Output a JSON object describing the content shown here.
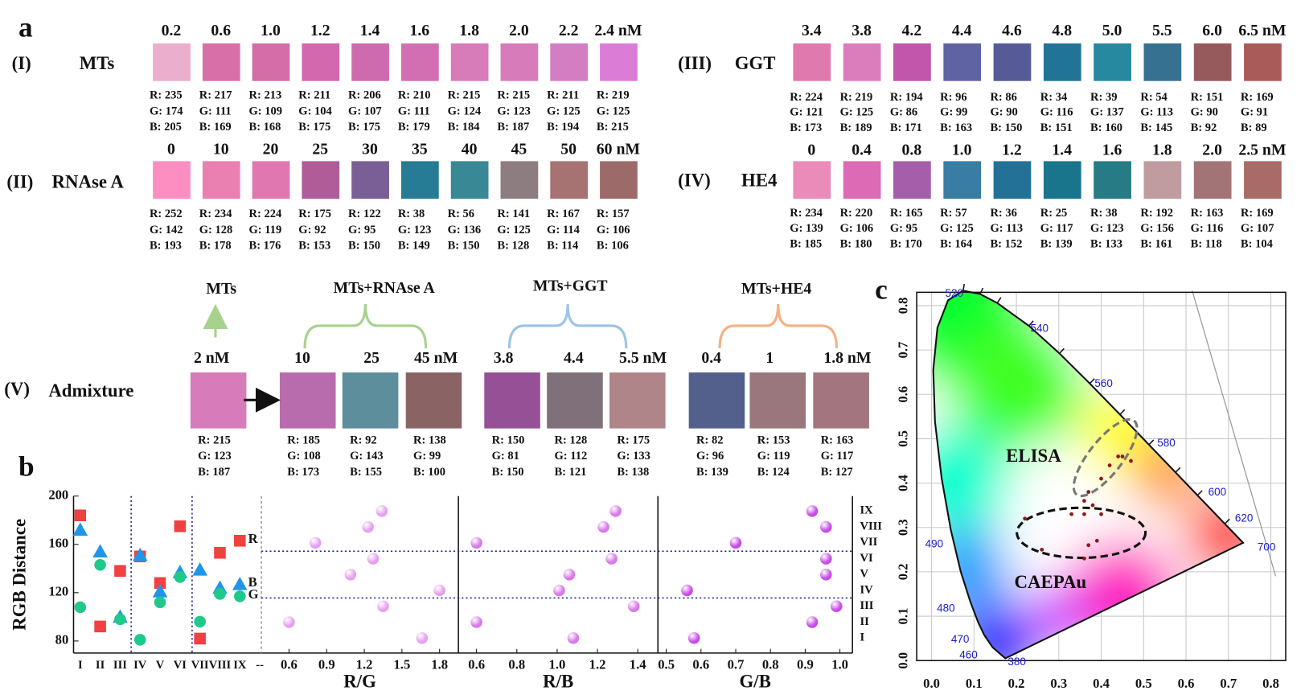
{
  "panel_a": {
    "label": "a",
    "groups": [
      {
        "roman": "(I)",
        "name": "MTs",
        "swatches": [
          {
            "conc": "0.2",
            "color": "rgb(235,174,205)",
            "rgb": [
              "R: 235",
              "G: 174",
              "B: 205"
            ]
          },
          {
            "conc": "0.6",
            "color": "rgb(217,111,169)",
            "rgb": [
              "R: 217",
              "G: 111",
              "B: 169"
            ]
          },
          {
            "conc": "1.0",
            "color": "rgb(213,109,168)",
            "rgb": [
              "R: 213",
              "G: 109",
              "B: 168"
            ]
          },
          {
            "conc": "1.2",
            "color": "rgb(211,104,175)",
            "rgb": [
              "R: 211",
              "G: 104",
              "B: 175"
            ]
          },
          {
            "conc": "1.4",
            "color": "rgb(206,107,175)",
            "rgb": [
              "R: 206",
              "G: 107",
              "B: 175"
            ]
          },
          {
            "conc": "1.6",
            "color": "rgb(210,111,179)",
            "rgb": [
              "R: 210",
              "G: 111",
              "B: 179"
            ]
          },
          {
            "conc": "1.8",
            "color": "rgb(215,124,184)",
            "rgb": [
              "R: 215",
              "G: 124",
              "B: 184"
            ]
          },
          {
            "conc": "2.0",
            "color": "rgb(215,123,187)",
            "rgb": [
              "R: 215",
              "G: 123",
              "B: 187"
            ]
          },
          {
            "conc": "2.2",
            "color": "rgb(211,125,194)",
            "rgb": [
              "R: 211",
              "G: 125",
              "B: 194"
            ]
          },
          {
            "conc": "2.4 nM",
            "color": "rgb(219,125,215)",
            "rgb": [
              "R: 219",
              "G: 125",
              "B: 215"
            ]
          }
        ]
      },
      {
        "roman": "(II)",
        "name": "RNAse A",
        "swatches": [
          {
            "conc": "0",
            "color": "rgb(252,142,193)",
            "rgb": [
              "R: 252",
              "G: 142",
              "B: 193"
            ]
          },
          {
            "conc": "10",
            "color": "rgb(234,128,178)",
            "rgb": [
              "R: 234",
              "G: 128",
              "B: 178"
            ]
          },
          {
            "conc": "20",
            "color": "rgb(224,119,176)",
            "rgb": [
              "R: 224",
              "G: 119",
              "B: 176"
            ]
          },
          {
            "conc": "25",
            "color": "rgb(175,92,153)",
            "rgb": [
              "R: 175",
              "G: 92",
              "B: 153"
            ]
          },
          {
            "conc": "30",
            "color": "rgb(122,95,150)",
            "rgb": [
              "R: 122",
              "G: 95",
              "B: 150"
            ]
          },
          {
            "conc": "35",
            "color": "rgb(38,123,149)",
            "rgb": [
              "R: 38",
              "G: 123",
              "B: 149"
            ]
          },
          {
            "conc": "40",
            "color": "rgb(56,136,150)",
            "rgb": [
              "R: 56",
              "G: 136",
              "B: 150"
            ]
          },
          {
            "conc": "45",
            "color": "rgb(141,125,128)",
            "rgb": [
              "R: 141",
              "G: 125",
              "B: 128"
            ]
          },
          {
            "conc": "50",
            "color": "rgb(167,114,114)",
            "rgb": [
              "R: 167",
              "G: 114",
              "B: 114"
            ]
          },
          {
            "conc": "60 nM",
            "color": "rgb(157,106,106)",
            "rgb": [
              "R: 157",
              "G: 106",
              "B: 106"
            ]
          }
        ]
      },
      {
        "roman": "(III)",
        "name": "GGT",
        "swatches": [
          {
            "conc": "3.4",
            "color": "rgb(224,121,173)",
            "rgb": [
              "R: 224",
              "G: 121",
              "B: 173"
            ]
          },
          {
            "conc": "3.8",
            "color": "rgb(219,125,189)",
            "rgb": [
              "R: 219",
              "G: 125",
              "B: 189"
            ]
          },
          {
            "conc": "4.2",
            "color": "rgb(194,86,171)",
            "rgb": [
              "R: 194",
              "G: 86",
              "B: 171"
            ]
          },
          {
            "conc": "4.4",
            "color": "rgb(96,99,163)",
            "rgb": [
              "R: 96",
              "G: 99",
              "B: 163"
            ]
          },
          {
            "conc": "4.6",
            "color": "rgb(86,90,150)",
            "rgb": [
              "R: 86",
              "G: 90",
              "B: 150"
            ]
          },
          {
            "conc": "4.8",
            "color": "rgb(34,116,151)",
            "rgb": [
              "R: 34",
              "G: 116",
              "B: 151"
            ]
          },
          {
            "conc": "5.0",
            "color": "rgb(39,137,160)",
            "rgb": [
              "R: 39",
              "G: 137",
              "B: 160"
            ]
          },
          {
            "conc": "5.5",
            "color": "rgb(54,113,145)",
            "rgb": [
              "R: 54",
              "G: 113",
              "B: 145"
            ]
          },
          {
            "conc": "6.0",
            "color": "rgb(151,90,92)",
            "rgb": [
              "R: 151",
              "G: 90",
              "B: 92"
            ]
          },
          {
            "conc": "6.5 nM",
            "color": "rgb(169,91,89)",
            "rgb": [
              "R: 169",
              "G: 91",
              "B: 89"
            ]
          }
        ]
      },
      {
        "roman": "(IV)",
        "name": "HE4",
        "swatches": [
          {
            "conc": "0",
            "color": "rgb(234,139,185)",
            "rgb": [
              "R: 234",
              "G: 139",
              "B: 185"
            ]
          },
          {
            "conc": "0.4",
            "color": "rgb(220,106,180)",
            "rgb": [
              "R: 220",
              "G: 106",
              "B: 180"
            ]
          },
          {
            "conc": "0.8",
            "color": "rgb(165,95,170)",
            "rgb": [
              "R: 165",
              "G: 95",
              "B: 170"
            ]
          },
          {
            "conc": "1.0",
            "color": "rgb(57,125,164)",
            "rgb": [
              "R: 57",
              "G: 125",
              "B: 164"
            ]
          },
          {
            "conc": "1.2",
            "color": "rgb(36,113,152)",
            "rgb": [
              "R: 36",
              "G: 113",
              "B: 152"
            ]
          },
          {
            "conc": "1.4",
            "color": "rgb(25,117,139)",
            "rgb": [
              "R: 25",
              "G: 117",
              "B: 139"
            ]
          },
          {
            "conc": "1.6",
            "color": "rgb(38,123,133)",
            "rgb": [
              "R: 38",
              "G: 123",
              "B: 133"
            ]
          },
          {
            "conc": "1.8",
            "color": "rgb(192,156,161)",
            "rgb": [
              "R: 192",
              "G: 156",
              "B: 161"
            ]
          },
          {
            "conc": "2.0",
            "color": "rgb(163,116,118)",
            "rgb": [
              "R: 163",
              "G: 116",
              "B: 118"
            ]
          },
          {
            "conc": "2.5 nM",
            "color": "rgb(169,107,104)",
            "rgb": [
              "R: 169",
              "G: 107",
              "B: 104"
            ]
          }
        ]
      }
    ]
  },
  "panel_v": {
    "roman": "(V)",
    "name": "Admixture",
    "groups": [
      {
        "name": "MTs",
        "swatches": [
          {
            "conc": "2 nM",
            "color": "rgb(215,123,187)",
            "rgb": [
              "R: 215",
              "G: 123",
              "B: 187"
            ]
          }
        ]
      },
      {
        "name": "MTs+RNAse A",
        "swatches": [
          {
            "conc": "10",
            "color": "rgb(185,108,173)",
            "rgb": [
              "R: 185",
              "G: 108",
              "B: 173"
            ]
          },
          {
            "conc": "25",
            "color": "rgb(92,143,155)",
            "rgb": [
              "R: 92",
              "G: 143",
              "B: 155"
            ]
          },
          {
            "conc": "45 nM",
            "color": "rgb(138,99,100)",
            "rgb": [
              "R: 138",
              "G: 99",
              "B: 100"
            ]
          }
        ]
      },
      {
        "name": "MTs+GGT",
        "swatches": [
          {
            "conc": "3.8",
            "color": "rgb(150,81,150)",
            "rgb": [
              "R: 150",
              "G: 81",
              "B: 150"
            ]
          },
          {
            "conc": "4.4",
            "color": "rgb(128,112,121)",
            "rgb": [
              "R: 128",
              "G: 112",
              "B: 121"
            ]
          },
          {
            "conc": "5.5 nM",
            "color": "rgb(175,133,138)",
            "rgb": [
              "R: 175",
              "G: 133",
              "B: 138"
            ]
          }
        ]
      },
      {
        "name": "MTs+HE4",
        "swatches": [
          {
            "conc": "0.4",
            "color": "rgb(82,96,139)",
            "rgb": [
              "R: 82",
              "G: 96",
              "B: 139"
            ]
          },
          {
            "conc": "1",
            "color": "rgb(153,119,124)",
            "rgb": [
              "R: 153",
              "G: 119",
              "B: 124"
            ]
          },
          {
            "conc": "1.8 nM",
            "color": "rgb(163,117,127)",
            "rgb": [
              "R: 163",
              "G: 117",
              "B: 127"
            ]
          }
        ]
      }
    ]
  },
  "chart_data": [
    {
      "type": "scatter",
      "panel_label": "b",
      "y_label": "RGB Distance",
      "categories": [
        "I",
        "II",
        "III",
        "IV",
        "V",
        "VI",
        "VII",
        "VIII",
        "IX",
        "--"
      ],
      "ylim": [
        70,
        200
      ],
      "yticks": [
        80,
        120,
        160,
        200
      ],
      "series": [
        {
          "name": "R",
          "color": "#f04040",
          "marker": "square",
          "values": [
            184,
            92,
            138,
            150,
            128,
            175,
            82,
            153,
            163,
            null
          ]
        },
        {
          "name": "B",
          "color": "#2196e8",
          "marker": "triangle",
          "values": [
            172,
            154,
            100,
            151,
            121,
            137,
            139,
            124,
            127,
            null
          ]
        },
        {
          "name": "G",
          "color": "#1ec98a",
          "marker": "circle",
          "values": [
            108,
            143,
            98,
            81,
            112,
            133,
            96,
            119,
            117,
            null
          ]
        }
      ]
    },
    {
      "type": "dot",
      "x_label": "R/G",
      "color": "#e6a0f0",
      "xlim": [
        0.38,
        1.95
      ],
      "xticks": [
        0.6,
        0.9,
        1.2,
        1.5,
        1.8
      ],
      "values": [
        1.66,
        0.6,
        1.35,
        1.8,
        1.09,
        1.27,
        0.81,
        1.23,
        1.34
      ]
    },
    {
      "type": "dot",
      "x_label": "R/B",
      "color": "#d878ea",
      "xlim": [
        0.51,
        1.5
      ],
      "xticks": [
        0.6,
        0.8,
        {
          "value": 1,
          "label": "1.0"
        },
        1.2,
        1.4
      ],
      "values": [
        1.08,
        0.6,
        1.38,
        1.01,
        1.06,
        1.27,
        0.6,
        1.23,
        1.29
      ]
    },
    {
      "type": "dot",
      "x_label": "G/B",
      "color": "#c84ce8",
      "xlim": [
        0.476,
        1.036
      ],
      "xticks": [
        0.5,
        0.6,
        0.7,
        0.8,
        0.9,
        {
          "value": 1,
          "label": "1.0"
        }
      ],
      "categories": [
        "I",
        "II",
        "III",
        "IV",
        "V",
        "VI",
        "VII",
        "VIII",
        "IX"
      ],
      "values": [
        0.58,
        0.92,
        0.99,
        0.56,
        0.96,
        0.96,
        0.7,
        0.96,
        0.92
      ]
    },
    {
      "type": "cie",
      "panel_label": "c",
      "xlim": [
        -0.035,
        0.835
      ],
      "ylim": [
        0,
        0.83
      ],
      "grid": true,
      "xticks": [
        {
          "value": 0,
          "label": "0.0"
        },
        0.1,
        0.2,
        0.3,
        0.4,
        0.5,
        0.6,
        0.7,
        0.8
      ],
      "yticks": [
        {
          "value": 0,
          "label": "0.0"
        },
        0.1,
        0.2,
        0.3,
        0.4,
        0.5,
        0.6,
        0.7,
        0.8
      ],
      "wavelength_labels": [
        "380",
        "460",
        "470",
        "480",
        "490",
        "520",
        "540",
        "560",
        "580",
        "600",
        "620",
        "700"
      ],
      "series": [
        {
          "name": "ELISA",
          "color": "#8b1a1a",
          "label_color": "#8a8a8a",
          "x": [
            0.44,
            0.45,
            0.47,
            0.42,
            0.4,
            0.37,
            0.36,
            0.38
          ],
          "y": [
            0.46,
            0.46,
            0.45,
            0.44,
            0.41,
            0.38,
            0.36,
            0.35
          ]
        },
        {
          "name": "CAEPAu",
          "color": "#8b1a1a",
          "label_color": "#111111",
          "x": [
            0.26,
            0.36,
            0.39,
            0.36,
            0.4,
            0.33,
            0.22,
            0.37
          ],
          "y": [
            0.25,
            0.23,
            0.27,
            0.33,
            0.33,
            0.33,
            0.32,
            0.26
          ]
        }
      ]
    }
  ]
}
